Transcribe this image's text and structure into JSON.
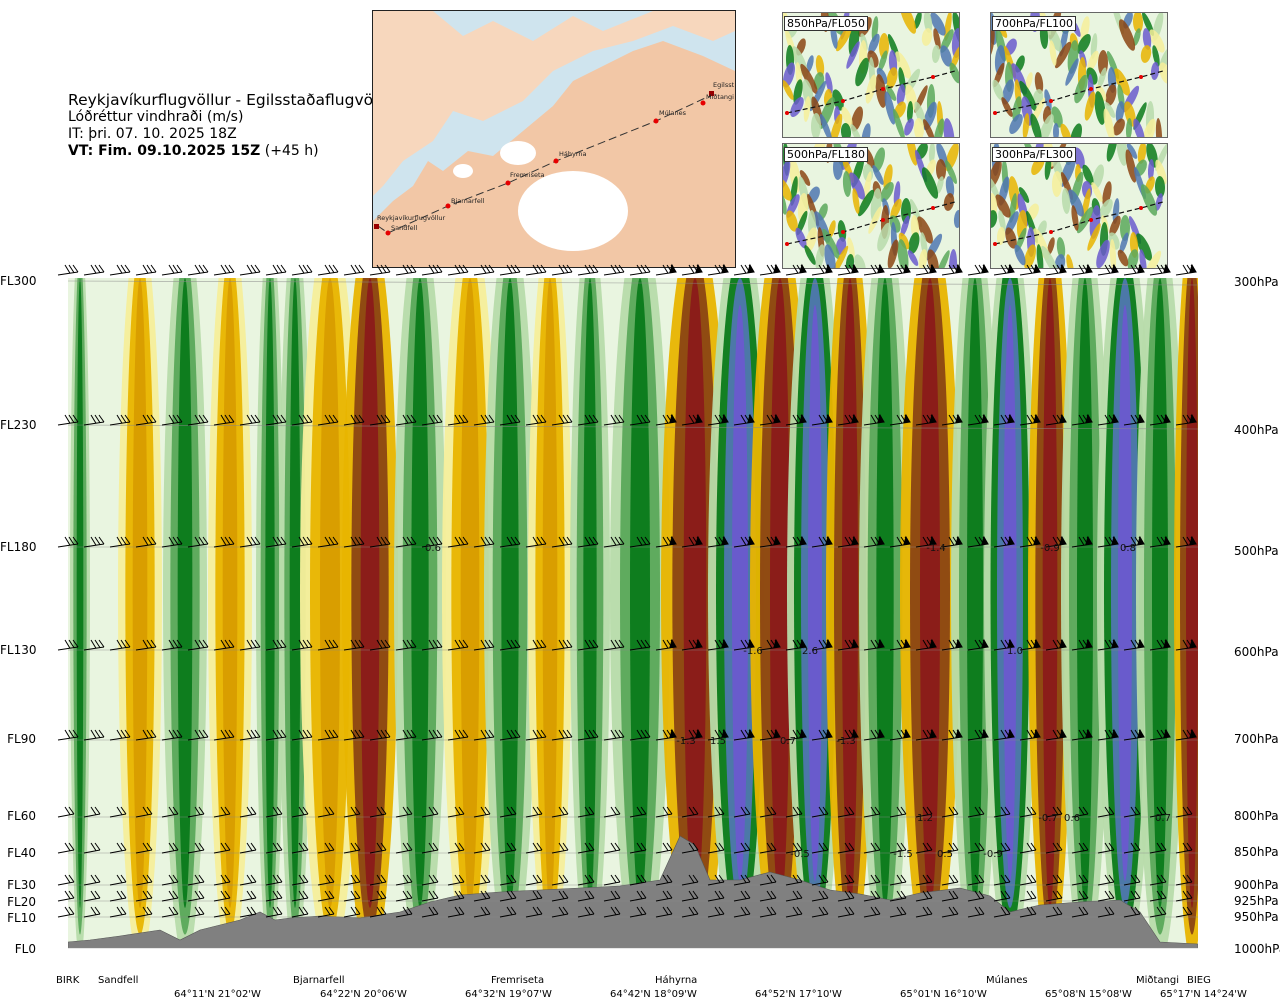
{
  "header": {
    "route": "Reykjavíkurflugvöllur - Egilsstaðaflugvöllur",
    "variable": "Lóðréttur vindhraði (m/s)",
    "it": "IT: þri. 07. 10. 2025 18Z",
    "vt_bold": "VT: Fim. 09.10.2025 15Z",
    "vt_offset": " (+45 h)"
  },
  "map": {
    "waypoints": [
      "Reykjavíkurflugvöllur",
      "Sandfell",
      "Bjarnarfell",
      "Fremriseta",
      "Háhyrna",
      "Múlanes",
      "Miðtangi",
      "Egilsst"
    ],
    "colors": {
      "sea": "#cfe4ee",
      "land": "#f2c7a6",
      "glacier": "#ffffff",
      "route": "#cc0000"
    }
  },
  "minimaps": [
    {
      "label": "850hPa/FL050"
    },
    {
      "label": "700hPa/FL100"
    },
    {
      "label": "500hPa/FL180"
    },
    {
      "label": "300hPa/FL300"
    }
  ],
  "axes": {
    "flight_levels": [
      "FL300",
      "FL230",
      "FL180",
      "FL130",
      "FL90",
      "FL60",
      "FL40",
      "FL30",
      "FL20",
      "FL10",
      "FL0"
    ],
    "pressure_levels": [
      "300hPa",
      "400hPa",
      "500hPa",
      "600hPa",
      "700hPa",
      "800hPa",
      "850hPa",
      "900hPa",
      "925hPa",
      "950hPa",
      "1000hPa"
    ]
  },
  "bottom": {
    "waypoints": [
      "BIRK",
      "Sandfell",
      "Bjarnarfell",
      "Fremriseta",
      "Háhyrna",
      "Múlanes",
      "Miðtangi",
      "BIEG"
    ],
    "coords": [
      "64°11'N 21°02'W",
      "64°22'N 20°06'W",
      "64°32'N 19°07'W",
      "64°42'N 18°09'W",
      "64°52'N 17°10'W",
      "65°01'N 16°10'W",
      "65°08'N 15°08'W",
      "65°17'N 14°24'W"
    ]
  },
  "contour_labels": [
    "0.6",
    "-1.4",
    "-0.9",
    "0.8",
    "-1.6",
    "2.6",
    "1.0",
    "-1.3",
    "1.5",
    "0.7",
    "-1.3",
    "1.2",
    "-0.7",
    "0.6",
    "0.7",
    "-0.5",
    "-1.5",
    "0.5",
    "-0.9"
  ],
  "legend_colors": {
    "strong_up": "#8b1a1a",
    "up": "#8b4513",
    "weak_up": "#e8b400",
    "slight_up": "#f6ee9a",
    "neutral": "#e9f5e0",
    "slight_down": "#b7dbaa",
    "down": "#5aa85a",
    "strong_down": "#0a7a1a",
    "very_down_a": "#4f77b0",
    "very_down_b": "#6a5acd",
    "terrain": "#808080"
  }
}
